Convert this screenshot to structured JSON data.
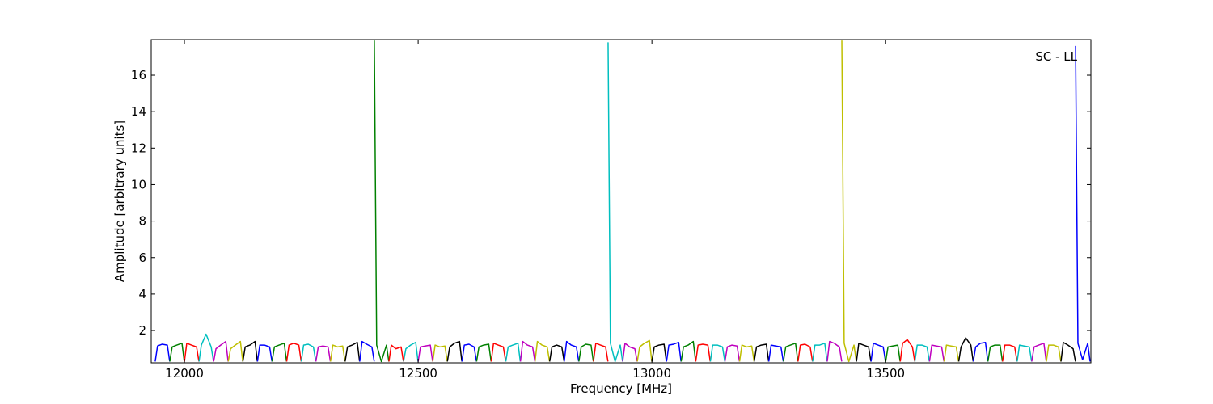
{
  "chart_data": {
    "type": "line",
    "x_label": "Frequency [MHz]",
    "y_label": "Amplitude [arbitrary units]",
    "annotation": "SC - LL",
    "xlim": [
      11929,
      13939
    ],
    "xticks": [
      12000,
      12500,
      13000,
      13500
    ],
    "ylim": [
      0.23,
      17.95
    ],
    "yticks": [
      2,
      4,
      6,
      8,
      10,
      12,
      14,
      16
    ],
    "grid": false,
    "series": [
      {
        "color": "#0000ff",
        "x": [
          11937.5,
          11942.5,
          11952.5,
          11963.5,
          11968.5
        ],
        "values": [
          0.3,
          1.15,
          1.25,
          1.2,
          0.3
        ]
      },
      {
        "color": "#008000",
        "x": [
          11968.75,
          11973.75,
          11983.75,
          11994.75,
          11999.75
        ],
        "values": [
          0.3,
          1.1,
          1.2,
          1.3,
          0.3
        ]
      },
      {
        "color": "#ff0000",
        "x": [
          12000,
          12005,
          12015,
          12026,
          12031
        ],
        "values": [
          0.3,
          1.3,
          1.2,
          1.1,
          0.3
        ]
      },
      {
        "color": "#00bfbf",
        "x": [
          12031.25,
          12036.25,
          12046.25,
          12057.25,
          12062.25
        ],
        "values": [
          0.3,
          1.2,
          1.8,
          1.1,
          0.3
        ]
      },
      {
        "color": "#bf00bf",
        "x": [
          12062.5,
          12067.5,
          12077.5,
          12088.5,
          12093.5
        ],
        "values": [
          0.3,
          1.0,
          1.2,
          1.4,
          0.3
        ]
      },
      {
        "color": "#bfbf00",
        "x": [
          12093.75,
          12098.75,
          12108.75,
          12119.75,
          12124.75
        ],
        "values": [
          0.3,
          1.0,
          1.2,
          1.4,
          0.3
        ]
      },
      {
        "color": "#000000",
        "x": [
          12125,
          12130,
          12140,
          12151,
          12156
        ],
        "values": [
          0.3,
          1.1,
          1.2,
          1.4,
          0.3
        ]
      },
      {
        "color": "#0000ff",
        "x": [
          12156.25,
          12161.25,
          12171.25,
          12182.25,
          12187.25
        ],
        "values": [
          0.3,
          1.2,
          1.2,
          1.1,
          0.3
        ]
      },
      {
        "color": "#008000",
        "x": [
          12187.5,
          12192.5,
          12202.5,
          12213.5,
          12218.5
        ],
        "values": [
          0.3,
          1.1,
          1.2,
          1.3,
          0.3
        ]
      },
      {
        "color": "#ff0000",
        "x": [
          12218.75,
          12223.75,
          12233.75,
          12244.75,
          12249.75
        ],
        "values": [
          0.3,
          1.2,
          1.3,
          1.2,
          0.3
        ]
      },
      {
        "color": "#00bfbf",
        "x": [
          12250,
          12255,
          12265,
          12276,
          12281
        ],
        "values": [
          0.3,
          1.2,
          1.25,
          1.1,
          0.3
        ]
      },
      {
        "color": "#bf00bf",
        "x": [
          12281.25,
          12286.25,
          12296.25,
          12307.25,
          12312.25
        ],
        "values": [
          0.3,
          1.1,
          1.15,
          1.1,
          0.3
        ]
      },
      {
        "color": "#bfbf00",
        "x": [
          12312.5,
          12317.5,
          12327.5,
          12338.5,
          12343.5
        ],
        "values": [
          0.3,
          1.2,
          1.1,
          1.15,
          0.3
        ]
      },
      {
        "color": "#000000",
        "x": [
          12343.75,
          12348.75,
          12358.75,
          12369.75,
          12374.75
        ],
        "values": [
          0.3,
          1.1,
          1.2,
          1.35,
          0.3
        ]
      },
      {
        "color": "#0000ff",
        "x": [
          12375,
          12380,
          12390,
          12401,
          12406
        ],
        "values": [
          0.3,
          1.4,
          1.25,
          1.1,
          0.3
        ]
      },
      {
        "color": "#008000",
        "x": [
          12406.25,
          12411.25,
          12421.25,
          12432.25,
          12437.25
        ],
        "values": [
          17.9,
          1.2,
          0.3,
          1.2,
          0.3
        ]
      },
      {
        "color": "#ff0000",
        "x": [
          12437.5,
          12442.5,
          12452.5,
          12463.5,
          12468.5
        ],
        "values": [
          0.3,
          1.2,
          1.0,
          1.1,
          0.3
        ]
      },
      {
        "color": "#00bfbf",
        "x": [
          12468.75,
          12473.75,
          12483.75,
          12494.75,
          12499.75
        ],
        "values": [
          0.3,
          1.0,
          1.2,
          1.35,
          0.3
        ]
      },
      {
        "color": "#bf00bf",
        "x": [
          12500,
          12505,
          12515,
          12526,
          12531
        ],
        "values": [
          0.3,
          1.1,
          1.15,
          1.2,
          0.3
        ]
      },
      {
        "color": "#bfbf00",
        "x": [
          12531.25,
          12536.25,
          12546.25,
          12557.25,
          12562.25
        ],
        "values": [
          0.3,
          1.2,
          1.1,
          1.15,
          0.3
        ]
      },
      {
        "color": "#000000",
        "x": [
          12562.5,
          12567.5,
          12577.5,
          12588.5,
          12593.5
        ],
        "values": [
          0.3,
          1.1,
          1.3,
          1.4,
          0.3
        ]
      },
      {
        "color": "#0000ff",
        "x": [
          12593.75,
          12598.75,
          12608.75,
          12619.75,
          12624.75
        ],
        "values": [
          0.3,
          1.2,
          1.25,
          1.1,
          0.3
        ]
      },
      {
        "color": "#008000",
        "x": [
          12625,
          12630,
          12640,
          12651,
          12656
        ],
        "values": [
          0.3,
          1.1,
          1.2,
          1.25,
          0.3
        ]
      },
      {
        "color": "#ff0000",
        "x": [
          12656.25,
          12661.25,
          12671.25,
          12682.25,
          12687.25
        ],
        "values": [
          0.3,
          1.3,
          1.2,
          1.1,
          0.3
        ]
      },
      {
        "color": "#00bfbf",
        "x": [
          12687.5,
          12692.5,
          12702.5,
          12713.5,
          12718.5
        ],
        "values": [
          0.3,
          1.1,
          1.2,
          1.3,
          0.3
        ]
      },
      {
        "color": "#bf00bf",
        "x": [
          12718.75,
          12723.75,
          12733.75,
          12744.75,
          12749.75
        ],
        "values": [
          0.3,
          1.4,
          1.2,
          1.1,
          0.3
        ]
      },
      {
        "color": "#bfbf00",
        "x": [
          12750,
          12755,
          12765,
          12776,
          12781
        ],
        "values": [
          0.3,
          1.4,
          1.2,
          1.1,
          0.3
        ]
      },
      {
        "color": "#000000",
        "x": [
          12781.25,
          12786.25,
          12796.25,
          12807.25,
          12812.25
        ],
        "values": [
          0.3,
          1.1,
          1.2,
          1.1,
          0.3
        ]
      },
      {
        "color": "#0000ff",
        "x": [
          12812.5,
          12817.5,
          12827.5,
          12838.5,
          12843.5
        ],
        "values": [
          0.3,
          1.4,
          1.2,
          1.1,
          0.3
        ]
      },
      {
        "color": "#008000",
        "x": [
          12843.75,
          12848.75,
          12858.75,
          12869.75,
          12874.75
        ],
        "values": [
          0.3,
          1.1,
          1.25,
          1.2,
          0.3
        ]
      },
      {
        "color": "#ff0000",
        "x": [
          12875,
          12880,
          12890,
          12901,
          12906
        ],
        "values": [
          0.3,
          1.3,
          1.2,
          1.1,
          0.3
        ]
      },
      {
        "color": "#00bfbf",
        "x": [
          12906.25,
          12911.25,
          12921.25,
          12932.25,
          12937.25
        ],
        "values": [
          17.8,
          1.3,
          0.3,
          1.2,
          0.3
        ]
      },
      {
        "color": "#bf00bf",
        "x": [
          12937.5,
          12942.5,
          12952.5,
          12963.5,
          12968.5
        ],
        "values": [
          0.3,
          1.3,
          1.1,
          1.0,
          0.3
        ]
      },
      {
        "color": "#bfbf00",
        "x": [
          12968.75,
          12973.75,
          12983.75,
          12994.75,
          12999.75
        ],
        "values": [
          0.3,
          1.1,
          1.3,
          1.45,
          0.3
        ]
      },
      {
        "color": "#000000",
        "x": [
          13000,
          13005,
          13015,
          13026,
          13031
        ],
        "values": [
          0.3,
          1.1,
          1.2,
          1.25,
          0.3
        ]
      },
      {
        "color": "#0000ff",
        "x": [
          13031.25,
          13036.25,
          13046.25,
          13057.25,
          13062.25
        ],
        "values": [
          0.3,
          1.2,
          1.25,
          1.35,
          0.3
        ]
      },
      {
        "color": "#008000",
        "x": [
          13062.5,
          13067.5,
          13077.5,
          13088.5,
          13093.5
        ],
        "values": [
          0.3,
          1.1,
          1.2,
          1.4,
          0.3
        ]
      },
      {
        "color": "#ff0000",
        "x": [
          13093.75,
          13098.75,
          13108.75,
          13119.75,
          13124.75
        ],
        "values": [
          0.3,
          1.2,
          1.25,
          1.2,
          0.3
        ]
      },
      {
        "color": "#00bfbf",
        "x": [
          13125,
          13130,
          13140,
          13151,
          13156
        ],
        "values": [
          0.3,
          1.2,
          1.2,
          1.1,
          0.3
        ]
      },
      {
        "color": "#bf00bf",
        "x": [
          13156.25,
          13161.25,
          13171.25,
          13182.25,
          13187.25
        ],
        "values": [
          0.3,
          1.1,
          1.2,
          1.15,
          0.3
        ]
      },
      {
        "color": "#bfbf00",
        "x": [
          13187.5,
          13192.5,
          13202.5,
          13213.5,
          13218.5
        ],
        "values": [
          0.3,
          1.2,
          1.1,
          1.15,
          0.3
        ]
      },
      {
        "color": "#000000",
        "x": [
          13218.75,
          13223.75,
          13233.75,
          13244.75,
          13249.75
        ],
        "values": [
          0.3,
          1.1,
          1.2,
          1.25,
          0.3
        ]
      },
      {
        "color": "#0000ff",
        "x": [
          13250,
          13255,
          13265,
          13276,
          13281
        ],
        "values": [
          0.3,
          1.2,
          1.15,
          1.1,
          0.3
        ]
      },
      {
        "color": "#008000",
        "x": [
          13281.25,
          13286.25,
          13296.25,
          13307.25,
          13312.25
        ],
        "values": [
          0.3,
          1.1,
          1.2,
          1.3,
          0.3
        ]
      },
      {
        "color": "#ff0000",
        "x": [
          13312.5,
          13317.5,
          13327.5,
          13338.5,
          13343.5
        ],
        "values": [
          0.3,
          1.2,
          1.25,
          1.1,
          0.3
        ]
      },
      {
        "color": "#00bfbf",
        "x": [
          13343.75,
          13348.75,
          13358.75,
          13369.75,
          13374.75
        ],
        "values": [
          0.3,
          1.2,
          1.2,
          1.3,
          0.3
        ]
      },
      {
        "color": "#bf00bf",
        "x": [
          13375,
          13380,
          13390,
          13401,
          13406
        ],
        "values": [
          0.3,
          1.4,
          1.3,
          1.1,
          0.3
        ]
      },
      {
        "color": "#bfbf00",
        "x": [
          13406.25,
          13411.25,
          13421.25,
          13432.25,
          13437.25
        ],
        "values": [
          17.9,
          1.3,
          0.3,
          1.2,
          0.3
        ]
      },
      {
        "color": "#000000",
        "x": [
          13437.5,
          13442.5,
          13452.5,
          13463.5,
          13468.5
        ],
        "values": [
          0.3,
          1.3,
          1.2,
          1.1,
          0.3
        ]
      },
      {
        "color": "#0000ff",
        "x": [
          13468.75,
          13473.75,
          13483.75,
          13494.75,
          13499.75
        ],
        "values": [
          0.3,
          1.3,
          1.2,
          1.1,
          0.3
        ]
      },
      {
        "color": "#008000",
        "x": [
          13500,
          13505,
          13515,
          13526,
          13531
        ],
        "values": [
          0.3,
          1.1,
          1.15,
          1.2,
          0.3
        ]
      },
      {
        "color": "#ff0000",
        "x": [
          13531.25,
          13536.25,
          13546.25,
          13557.25,
          13562.25
        ],
        "values": [
          0.3,
          1.3,
          1.5,
          1.1,
          0.3
        ]
      },
      {
        "color": "#00bfbf",
        "x": [
          13562.5,
          13567.5,
          13577.5,
          13588.5,
          13593.5
        ],
        "values": [
          0.3,
          1.2,
          1.2,
          1.1,
          0.3
        ]
      },
      {
        "color": "#bf00bf",
        "x": [
          13593.75,
          13598.75,
          13608.75,
          13619.75,
          13624.75
        ],
        "values": [
          0.3,
          1.2,
          1.15,
          1.1,
          0.3
        ]
      },
      {
        "color": "#bfbf00",
        "x": [
          13625,
          13630,
          13640,
          13651,
          13656
        ],
        "values": [
          0.3,
          1.2,
          1.15,
          1.1,
          0.3
        ]
      },
      {
        "color": "#000000",
        "x": [
          13656.25,
          13661.25,
          13671.25,
          13682.25,
          13687.25
        ],
        "values": [
          0.3,
          1.1,
          1.6,
          1.2,
          0.3
        ]
      },
      {
        "color": "#0000ff",
        "x": [
          13687.5,
          13692.5,
          13702.5,
          13713.5,
          13718.5
        ],
        "values": [
          0.3,
          1.1,
          1.3,
          1.35,
          0.3
        ]
      },
      {
        "color": "#008000",
        "x": [
          13718.75,
          13723.75,
          13733.75,
          13744.75,
          13749.75
        ],
        "values": [
          0.3,
          1.1,
          1.2,
          1.2,
          0.3
        ]
      },
      {
        "color": "#ff0000",
        "x": [
          13750,
          13755,
          13765,
          13776,
          13781
        ],
        "values": [
          0.3,
          1.2,
          1.2,
          1.1,
          0.3
        ]
      },
      {
        "color": "#00bfbf",
        "x": [
          13781.25,
          13786.25,
          13796.25,
          13807.25,
          13812.25
        ],
        "values": [
          0.3,
          1.2,
          1.15,
          1.1,
          0.3
        ]
      },
      {
        "color": "#bf00bf",
        "x": [
          13812.5,
          13817.5,
          13827.5,
          13838.5,
          13843.5
        ],
        "values": [
          0.3,
          1.1,
          1.2,
          1.3,
          0.3
        ]
      },
      {
        "color": "#bfbf00",
        "x": [
          13843.75,
          13848.75,
          13858.75,
          13869.75,
          13874.75
        ],
        "values": [
          0.3,
          1.2,
          1.2,
          1.1,
          0.3
        ]
      },
      {
        "color": "#000000",
        "x": [
          13875,
          13880,
          13890,
          13901,
          13906
        ],
        "values": [
          0.3,
          1.35,
          1.2,
          1.0,
          0.3
        ]
      },
      {
        "color": "#0000ff",
        "x": [
          13906.25,
          13911.25,
          13921.25,
          13932.25,
          13937.25
        ],
        "values": [
          17.6,
          1.3,
          0.4,
          1.3,
          0.3
        ]
      }
    ]
  }
}
